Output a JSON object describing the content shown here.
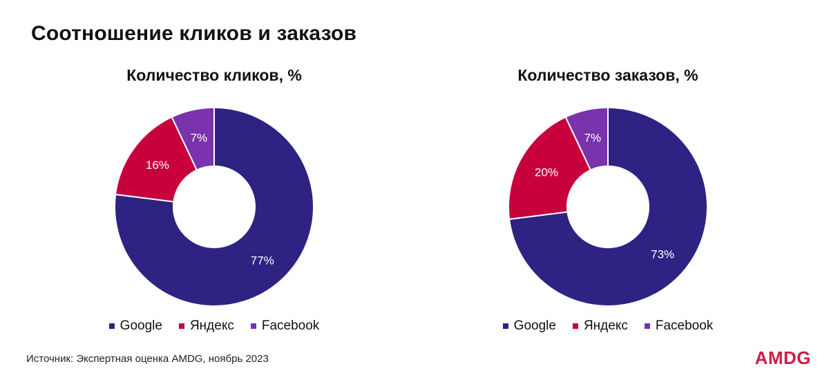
{
  "page": {
    "title": "Соотношение кликов и заказов",
    "source": "Источник: Экспертная оценка AMDG, ноябрь 2023",
    "logo": "AMDG"
  },
  "colors": {
    "google": "#2e2382",
    "yandex": "#c8003c",
    "facebook": "#7a33ac",
    "logo": "#d01a45"
  },
  "chart_data": [
    {
      "type": "pie",
      "title": "Количество кликов, %",
      "categories": [
        "Google",
        "Яндекс",
        "Facebook"
      ],
      "values": [
        77,
        16,
        7
      ],
      "labels": [
        "77%",
        "16%",
        "7%"
      ],
      "legend": "bottom"
    },
    {
      "type": "pie",
      "title": "Количество заказов, %",
      "categories": [
        "Google",
        "Яндекс",
        "Facebook"
      ],
      "values": [
        73,
        20,
        7
      ],
      "labels": [
        "73%",
        "20%",
        "7%"
      ],
      "legend": "bottom"
    }
  ]
}
